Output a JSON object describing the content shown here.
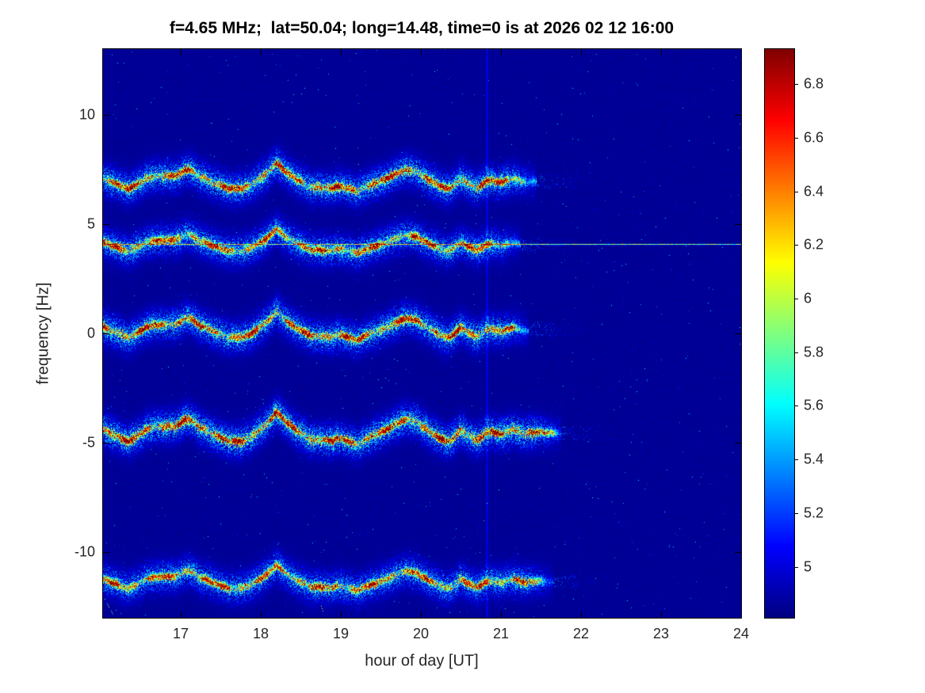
{
  "chart_data": {
    "type": "heatmap",
    "subtype": "doppler-spectrogram",
    "title": "f=4.65 MHz;  lat=50.04; long=14.48, time=0 is at 2026 02 12 16:00",
    "xlabel": "hour of day [UT]",
    "ylabel": "frequency [Hz]",
    "x_range": [
      16.03,
      24
    ],
    "y_range": [
      -13,
      13
    ],
    "x_ticks": [
      {
        "value": 17,
        "label": "17"
      },
      {
        "value": 18,
        "label": "18"
      },
      {
        "value": 19,
        "label": "19"
      },
      {
        "value": 20,
        "label": "20"
      },
      {
        "value": 21,
        "label": "21"
      },
      {
        "value": 22,
        "label": "22"
      },
      {
        "value": 23,
        "label": "23"
      },
      {
        "value": 24,
        "label": "24"
      }
    ],
    "y_ticks": [
      {
        "value": -10,
        "label": "-10"
      },
      {
        "value": -5,
        "label": "-5"
      },
      {
        "value": 0,
        "label": "0"
      },
      {
        "value": 5,
        "label": "5"
      },
      {
        "value": 10,
        "label": "10"
      }
    ],
    "colormap": "jet",
    "color_limits": [
      4.81,
      6.93
    ],
    "colorbar_ticks": [
      {
        "value": 5,
        "label": "5"
      },
      {
        "value": 5.2,
        "label": "5.2"
      },
      {
        "value": 5.4,
        "label": "5.4"
      },
      {
        "value": 5.6,
        "label": "5.6"
      },
      {
        "value": 5.8,
        "label": "5.8"
      },
      {
        "value": 6,
        "label": "6"
      },
      {
        "value": 6.2,
        "label": "6.2"
      },
      {
        "value": 6.4,
        "label": "6.4"
      },
      {
        "value": 6.6,
        "label": "6.6"
      },
      {
        "value": 6.8,
        "label": "6.8"
      }
    ],
    "grid": false,
    "legend": null,
    "background_level": 4.83,
    "background_noise": 0.055,
    "traces": [
      {
        "name": "trace-plus7Hz",
        "center_hz": 6.95,
        "mod_scale": 1.0,
        "start_hour": 16.03,
        "end_hour": 21.45,
        "core_amp": 2.05,
        "halo_amp": 1.1
      },
      {
        "name": "trace-plus4Hz",
        "center_hz": 4.05,
        "mod_scale": 0.85,
        "start_hour": 16.03,
        "end_hour": 21.25,
        "core_amp": 1.9,
        "halo_amp": 1.0
      },
      {
        "name": "trace-0Hz",
        "center_hz": 0.15,
        "mod_scale": 1.0,
        "start_hour": 16.03,
        "end_hour": 21.35,
        "core_amp": 2.05,
        "halo_amp": 1.1
      },
      {
        "name": "trace-minus4Hz",
        "center_hz": -4.55,
        "mod_scale": 1.15,
        "start_hour": 16.03,
        "end_hour": 21.75,
        "core_amp": 2.15,
        "halo_amp": 1.2
      },
      {
        "name": "trace-minus11Hz",
        "center_hz": -11.35,
        "mod_scale": 0.9,
        "start_hour": 16.03,
        "end_hour": 21.65,
        "core_amp": 1.9,
        "halo_amp": 1.0
      }
    ],
    "doppler_modulation_hz": [
      [
        16.03,
        0.15
      ],
      [
        16.2,
        -0.1
      ],
      [
        16.35,
        -0.35
      ],
      [
        16.55,
        0.1
      ],
      [
        16.7,
        0.3
      ],
      [
        16.9,
        0.25
      ],
      [
        17.1,
        0.6
      ],
      [
        17.25,
        0.2
      ],
      [
        17.45,
        -0.1
      ],
      [
        17.6,
        -0.3
      ],
      [
        17.75,
        -0.35
      ],
      [
        17.9,
        -0.1
      ],
      [
        18.05,
        0.3
      ],
      [
        18.2,
        0.85
      ],
      [
        18.35,
        0.35
      ],
      [
        18.5,
        0.0
      ],
      [
        18.65,
        -0.25
      ],
      [
        18.85,
        -0.3
      ],
      [
        19.0,
        -0.2
      ],
      [
        19.2,
        -0.45
      ],
      [
        19.4,
        -0.1
      ],
      [
        19.6,
        0.2
      ],
      [
        19.8,
        0.55
      ],
      [
        19.95,
        0.45
      ],
      [
        20.1,
        0.1
      ],
      [
        20.25,
        -0.2
      ],
      [
        20.35,
        -0.35
      ],
      [
        20.5,
        0.15
      ],
      [
        20.6,
        -0.1
      ],
      [
        20.7,
        -0.3
      ],
      [
        20.85,
        0.1
      ],
      [
        21.0,
        -0.05
      ],
      [
        21.15,
        0.15
      ],
      [
        21.3,
        0.0
      ],
      [
        21.5,
        0.05
      ],
      [
        22.0,
        0.0
      ]
    ],
    "horizontal_line": {
      "freq_hz": 4.1,
      "amp": 1.15
    },
    "vertical_line": {
      "hour": 20.82,
      "amp": 0.14
    },
    "artifacts": [
      {
        "hour_start": 16.05,
        "hour_end": 16.18,
        "freq_start": -12.1,
        "freq_end": -13.0
      },
      {
        "hour_start": 18.72,
        "hour_end": 18.82,
        "freq_start": -12.0,
        "freq_end": -13.2
      }
    ]
  }
}
